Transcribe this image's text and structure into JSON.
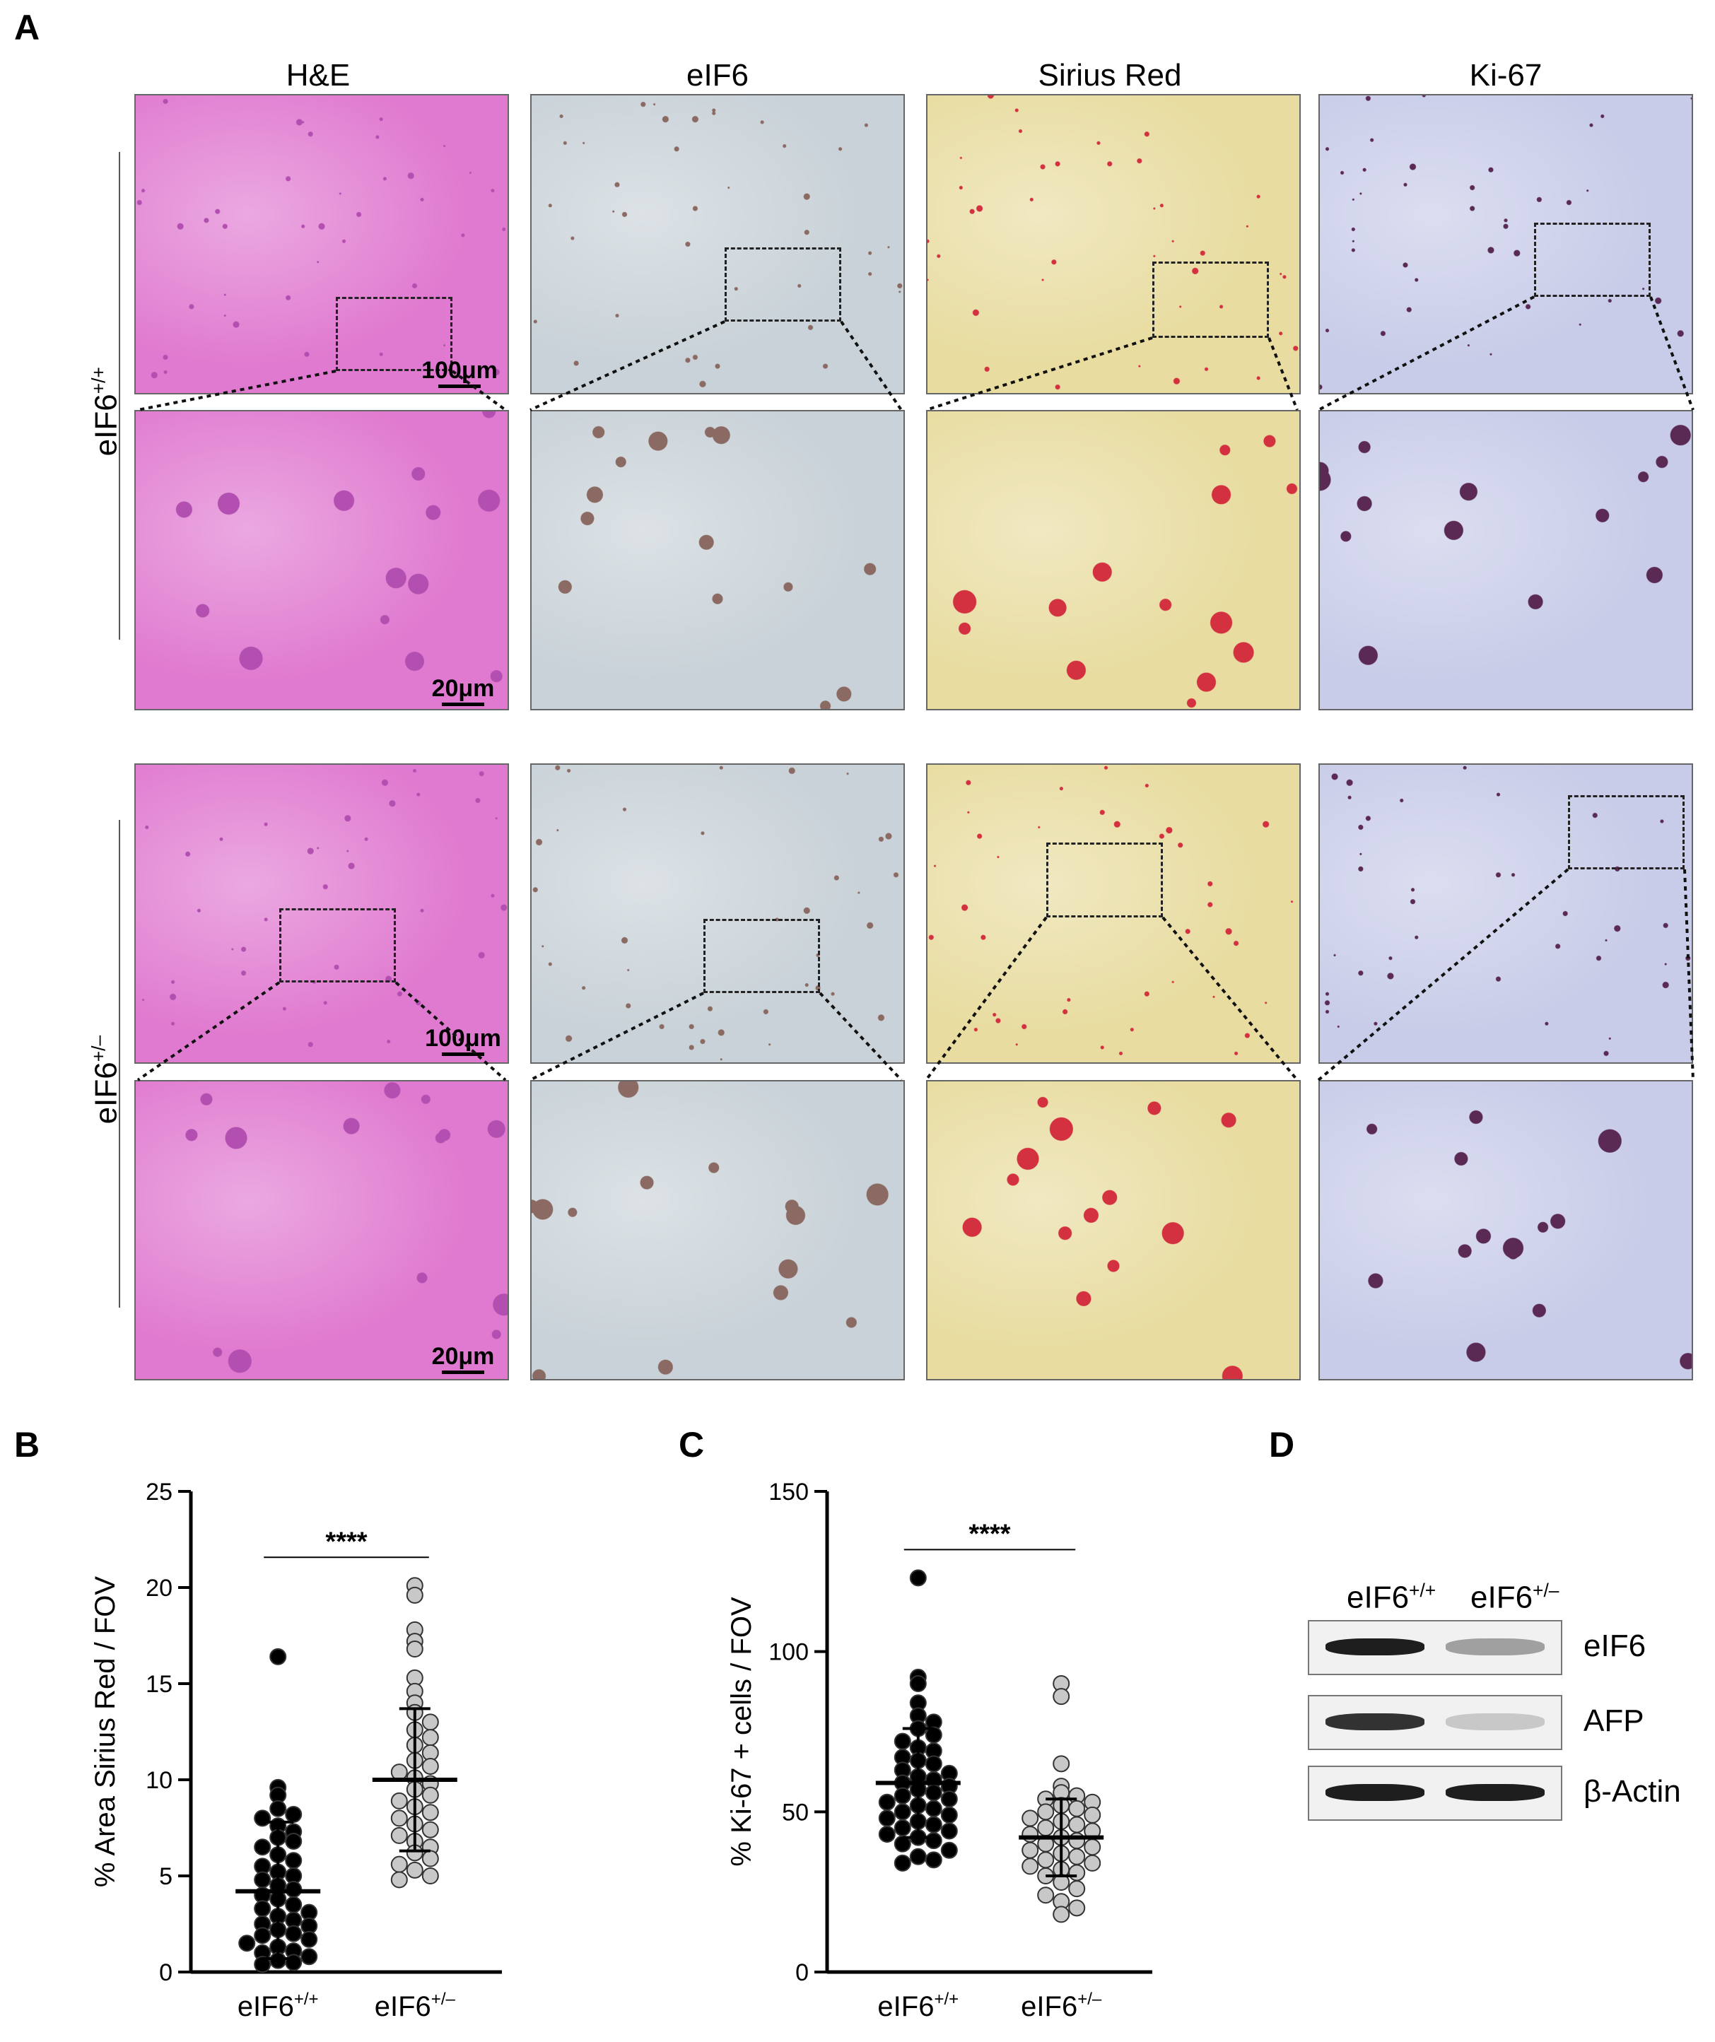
{
  "panel_a": {
    "letter": "A",
    "columns": [
      "H&E",
      "eIF6",
      "Sirius Red",
      "Ki-67"
    ],
    "rows": [
      {
        "label_base": "eIF6",
        "label_sup": "+/+"
      },
      {
        "label_base": "eIF6",
        "label_sup": "+/–"
      }
    ],
    "scale_low": "100μm",
    "scale_high": "20μm"
  },
  "panel_b": {
    "letter": "B"
  },
  "panel_c": {
    "letter": "C"
  },
  "panel_d": {
    "letter": "D",
    "lanes": [
      {
        "base": "eIF6",
        "sup": "+/+"
      },
      {
        "base": "eIF6",
        "sup": "+/–"
      }
    ],
    "proteins": [
      "eIF6",
      "AFP",
      "β-Actin"
    ],
    "band_intensity": [
      [
        1.0,
        0.35
      ],
      [
        0.9,
        0.15
      ],
      [
        1.0,
        1.0
      ]
    ]
  },
  "colors": {
    "he": "#e07ad0",
    "he_dark": "#b34fb0",
    "eif6": "#c9d2d8",
    "eif6_dark": "#8a6a62",
    "sirius": "#e8dca0",
    "sirius_dark": "#d33040",
    "ki67": "#c8cce8",
    "ki67_dark": "#5a2a55",
    "dot_wt": "#000000",
    "dot_het": "#c8c8c8"
  },
  "chart_data": [
    {
      "type": "scatter",
      "panel": "B",
      "ylabel": "% Area Sirius Red / FOV",
      "ylim": [
        0,
        25
      ],
      "yticks": [
        0,
        5,
        10,
        15,
        20,
        25
      ],
      "significance": "****",
      "categories": [
        {
          "base": "eIF6",
          "sup": "+/+"
        },
        {
          "base": "eIF6",
          "sup": "+/–"
        }
      ],
      "series": [
        {
          "mean": 4.2,
          "sd_low": 0.7,
          "sd_high": 7.8,
          "values": [
            16.4,
            9.6,
            9.2,
            8.5,
            8.2,
            8.0,
            7.6,
            7.3,
            7.0,
            6.8,
            6.5,
            6.1,
            5.8,
            5.5,
            5.2,
            5.0,
            4.8,
            4.5,
            4.3,
            4.0,
            3.8,
            3.5,
            3.3,
            3.1,
            2.9,
            2.7,
            2.5,
            2.4,
            2.2,
            2.0,
            1.9,
            1.7,
            1.5,
            1.3,
            1.1,
            1.0,
            0.8,
            0.6,
            0.5,
            0.4
          ]
        },
        {
          "mean": 10.0,
          "sd_low": 6.3,
          "sd_high": 13.7,
          "values": [
            20.1,
            19.6,
            17.8,
            17.2,
            16.8,
            15.3,
            14.6,
            14.0,
            13.5,
            13.0,
            12.6,
            12.2,
            11.8,
            11.4,
            11.0,
            10.7,
            10.4,
            10.1,
            9.8,
            9.5,
            9.2,
            8.9,
            8.6,
            8.3,
            8.0,
            7.7,
            7.4,
            7.1,
            6.8,
            6.5,
            6.2,
            5.9,
            5.6,
            5.3,
            5.0,
            4.8
          ]
        }
      ]
    },
    {
      "type": "scatter",
      "panel": "C",
      "ylabel": "% Ki-67 + cells / FOV",
      "ylim": [
        0,
        150
      ],
      "yticks": [
        0,
        50,
        100,
        150
      ],
      "significance": "****",
      "categories": [
        {
          "base": "eIF6",
          "sup": "+/+"
        },
        {
          "base": "eIF6",
          "sup": "+/–"
        }
      ],
      "series": [
        {
          "mean": 59,
          "sd_low": 42,
          "sd_high": 76,
          "values": [
            123,
            92,
            90,
            84,
            80,
            78,
            76,
            74,
            72,
            70,
            69,
            67,
            66,
            65,
            63,
            62,
            61,
            60,
            59,
            58,
            57,
            56,
            55,
            54,
            53,
            52,
            51,
            50,
            49,
            48,
            47,
            46,
            45,
            44,
            43,
            42,
            41,
            40,
            38,
            36,
            35,
            34
          ]
        },
        {
          "mean": 42,
          "sd_low": 30,
          "sd_high": 54,
          "values": [
            90,
            86,
            65,
            58,
            56,
            55,
            54,
            53,
            52,
            51,
            50,
            49,
            48,
            47,
            46,
            45,
            44,
            43,
            42,
            41,
            40,
            39,
            38,
            37,
            36,
            35,
            34,
            33,
            32,
            31,
            30,
            28,
            26,
            24,
            22,
            20,
            18
          ]
        }
      ]
    }
  ]
}
